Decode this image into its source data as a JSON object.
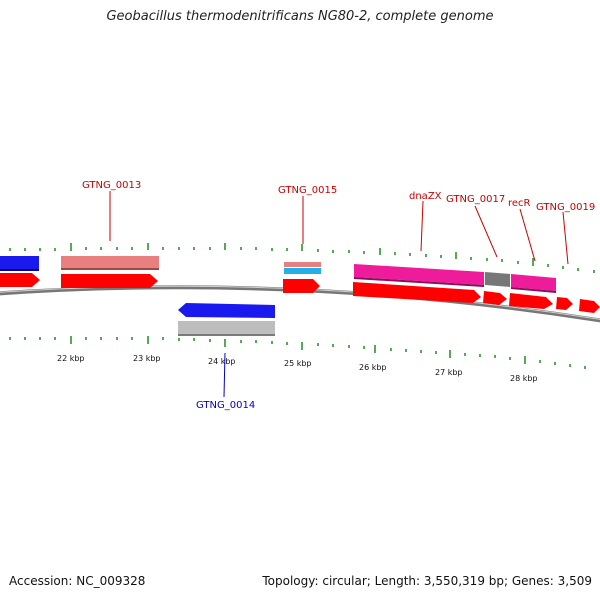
{
  "header": {
    "title": "Geobacillus thermodenitrificans NG80-2, complete genome"
  },
  "footer": {
    "accession": "Accession: NC_009328",
    "summary": "Topology: circular; Length: 3,550,319 bp; Genes: 3,509"
  },
  "scale_labels": [
    "22 kbp",
    "23 kbp",
    "24 kbp",
    "25 kbp",
    "26 kbp",
    "27 kbp",
    "28 kbp"
  ],
  "gene_labels": [
    {
      "id": "GTNG_0013",
      "text": "GTNG_0013",
      "color": "#cc0000"
    },
    {
      "id": "GTNG_0014",
      "text": "GTNG_0014",
      "color": "#0000cc"
    },
    {
      "id": "GTNG_0015",
      "text": "GTNG_0015",
      "color": "#cc0000"
    },
    {
      "id": "dnaZX",
      "text": "dnaZX",
      "color": "#cc0000"
    },
    {
      "id": "GTNG_0017",
      "text": "GTNG_0017",
      "color": "#cc0000"
    },
    {
      "id": "recR",
      "text": "recR",
      "color": "#cc0000"
    },
    {
      "id": "GTNG_0019",
      "text": "GTNG_0019",
      "color": "#cc0000"
    }
  ],
  "colors": {
    "cds_forward": "#ff0000",
    "cds_reverse": "#1a1aee",
    "gene_salmon": "#e88080",
    "gene_magenta": "#ee1c9a",
    "gene_gray": "#777777",
    "gene_lightgray": "#bdbdbd",
    "gene_cyan": "#22b0e6",
    "tick_green": "#1f8a1f",
    "backbone": "#888888",
    "label_forward": "#cc0000",
    "label_reverse": "#0000cc"
  }
}
